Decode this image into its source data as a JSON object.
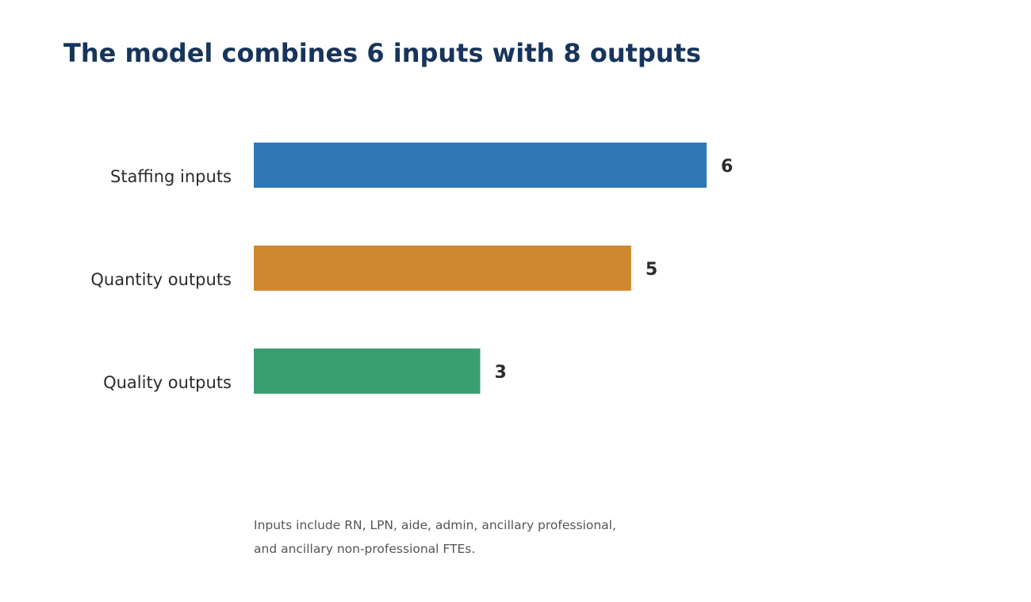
{
  "title": "The model combines 6 inputs with 8 outputs",
  "chart_data": {
    "type": "bar",
    "orientation": "horizontal",
    "categories": [
      "Staffing inputs",
      "Quantity outputs",
      "Quality outputs"
    ],
    "values": [
      6,
      5,
      3
    ],
    "data_labels": [
      "6",
      "5",
      "3"
    ],
    "colors": [
      "#2e78b8",
      "#d08830",
      "#3b9d72"
    ],
    "xlim": [
      0,
      6
    ],
    "grid": false,
    "legend": "none"
  },
  "footnote": {
    "line1": "Inputs include RN, LPN, aide, admin, ancillary professional,",
    "line2": "and ancillary non-professional FTEs."
  }
}
